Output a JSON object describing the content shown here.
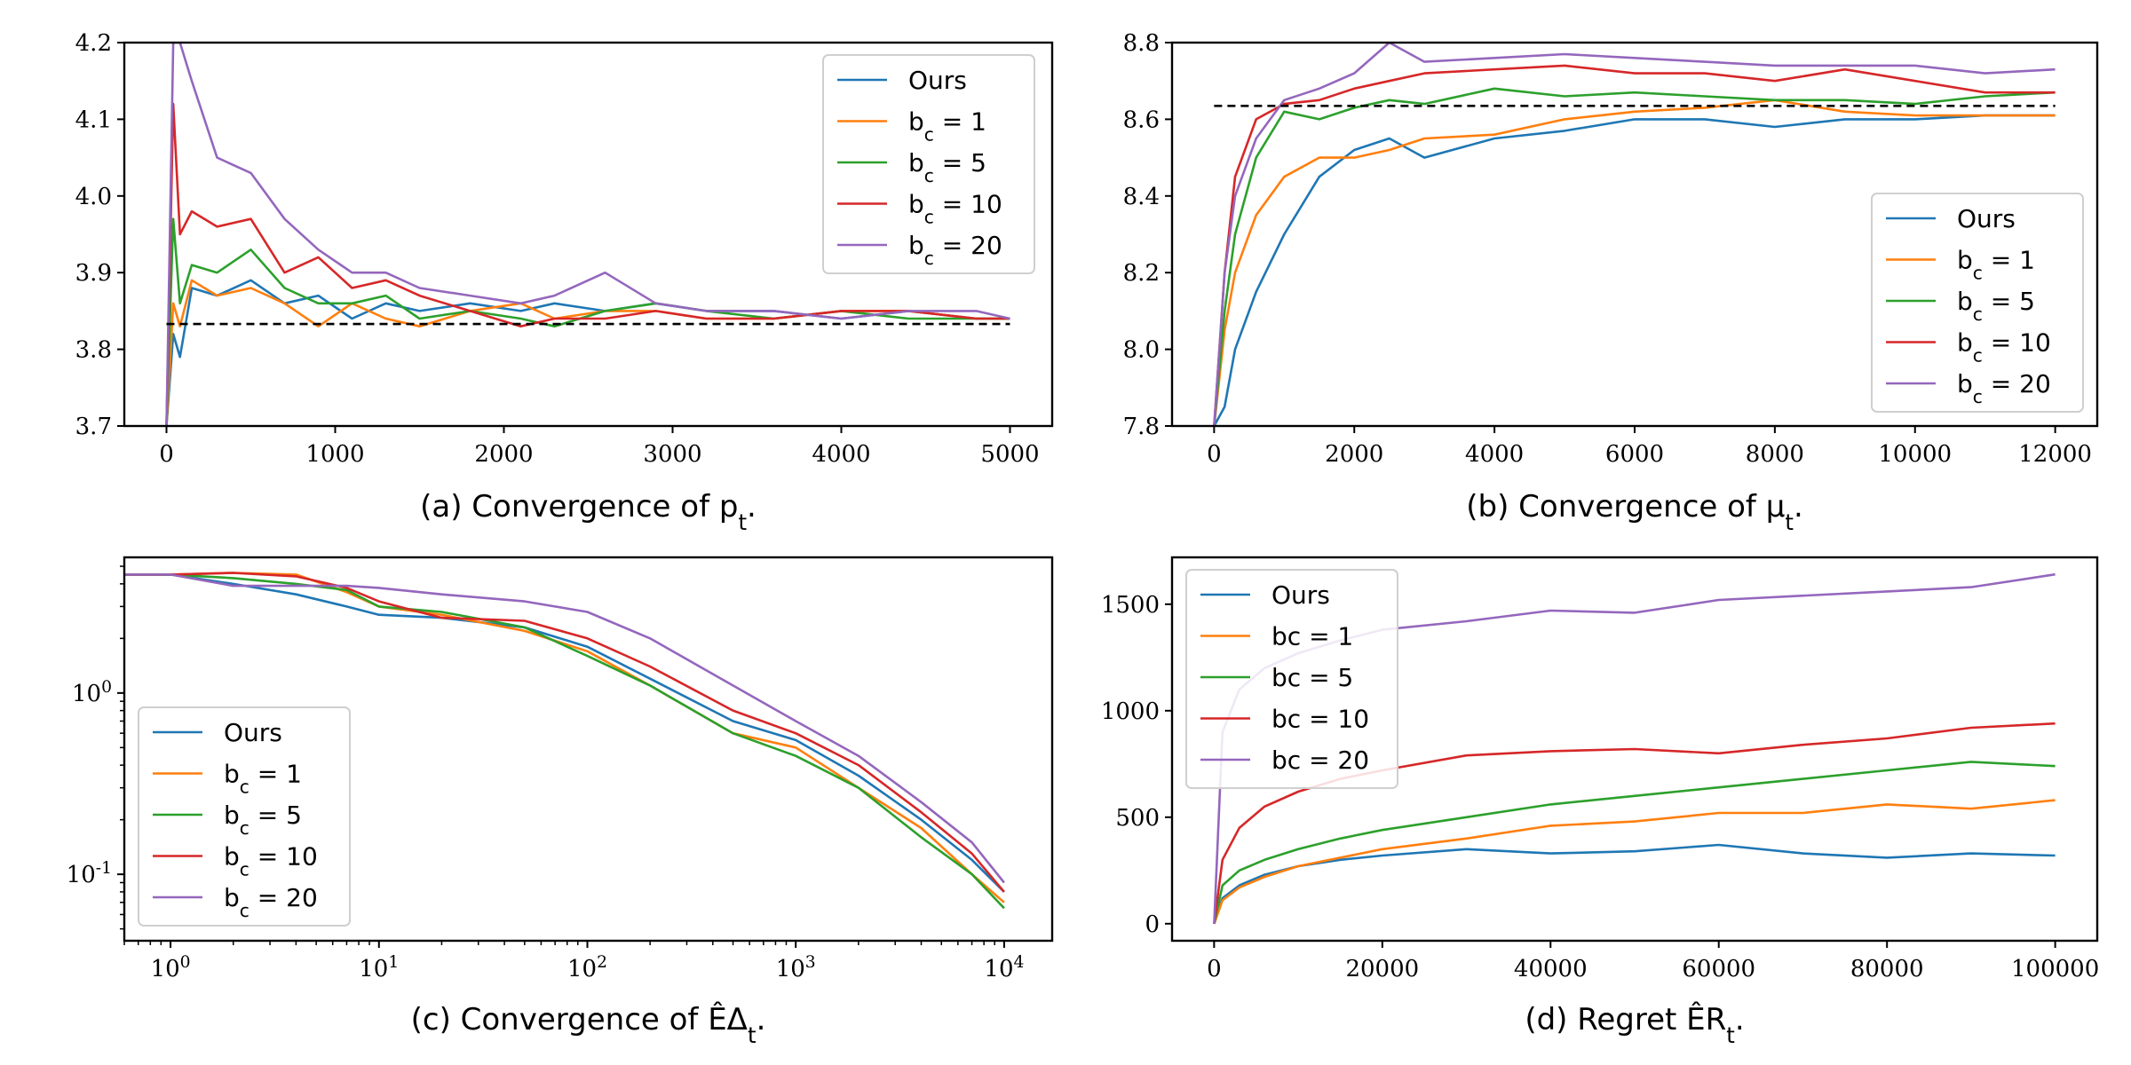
{
  "chart_data": [
    {
      "id": "a",
      "type": "line",
      "caption": "(a) Convergence of p_t.",
      "xscale": "linear",
      "yscale": "linear",
      "xlim": [
        -250,
        5250
      ],
      "ylim": [
        3.7,
        4.2
      ],
      "xticks": [
        0,
        1000,
        2000,
        3000,
        4000,
        5000
      ],
      "xtick_labels": [
        "0",
        "1000",
        "2000",
        "3000",
        "4000",
        "5000"
      ],
      "yticks": [
        3.7,
        3.8,
        3.9,
        4.0,
        4.1,
        4.2
      ],
      "ytick_labels": [
        "3.7",
        "3.8",
        "3.9",
        "4.0",
        "4.1",
        "4.2"
      ],
      "reference_line": 3.833,
      "legend": "top-right",
      "series": [
        {
          "name": "Ours",
          "color": "#1f77b4",
          "x": [
            0,
            40,
            80,
            150,
            300,
            500,
            700,
            900,
            1100,
            1300,
            1500,
            1800,
            2100,
            2300,
            2600,
            2900,
            3200,
            3600,
            4000,
            4400,
            4800,
            5000
          ],
          "y": [
            3.7,
            3.82,
            3.79,
            3.88,
            3.87,
            3.89,
            3.86,
            3.87,
            3.84,
            3.86,
            3.85,
            3.86,
            3.85,
            3.86,
            3.85,
            3.86,
            3.85,
            3.85,
            3.84,
            3.85,
            3.84,
            3.84
          ]
        },
        {
          "name": "b_c = 1",
          "color": "#ff7f0e",
          "x": [
            0,
            40,
            80,
            150,
            300,
            500,
            700,
            900,
            1100,
            1300,
            1500,
            1800,
            2100,
            2300,
            2600,
            2900,
            3200,
            3600,
            4000,
            4400,
            4800,
            5000
          ],
          "y": [
            3.7,
            3.86,
            3.83,
            3.89,
            3.87,
            3.88,
            3.86,
            3.83,
            3.86,
            3.84,
            3.83,
            3.85,
            3.86,
            3.84,
            3.85,
            3.85,
            3.84,
            3.84,
            3.85,
            3.85,
            3.84,
            3.84
          ]
        },
        {
          "name": "b_c = 5",
          "color": "#2ca02c",
          "x": [
            0,
            40,
            80,
            150,
            300,
            500,
            700,
            900,
            1100,
            1300,
            1500,
            1800,
            2100,
            2300,
            2600,
            2900,
            3200,
            3600,
            4000,
            4400,
            4800,
            5000
          ],
          "y": [
            3.7,
            3.97,
            3.86,
            3.91,
            3.9,
            3.93,
            3.88,
            3.86,
            3.86,
            3.87,
            3.84,
            3.85,
            3.84,
            3.83,
            3.85,
            3.86,
            3.85,
            3.84,
            3.85,
            3.84,
            3.84,
            3.84
          ]
        },
        {
          "name": "b_c = 10",
          "color": "#d62728",
          "x": [
            0,
            40,
            80,
            150,
            300,
            500,
            700,
            900,
            1100,
            1300,
            1500,
            1800,
            2100,
            2300,
            2600,
            2900,
            3200,
            3600,
            4000,
            4400,
            4800,
            5000
          ],
          "y": [
            3.7,
            4.12,
            3.95,
            3.98,
            3.96,
            3.97,
            3.9,
            3.92,
            3.88,
            3.89,
            3.87,
            3.85,
            3.83,
            3.84,
            3.84,
            3.85,
            3.84,
            3.84,
            3.85,
            3.85,
            3.84,
            3.84
          ]
        },
        {
          "name": "b_c = 20",
          "color": "#9467bd",
          "x": [
            0,
            40,
            80,
            150,
            300,
            500,
            700,
            900,
            1100,
            1300,
            1500,
            1800,
            2100,
            2300,
            2600,
            2900,
            3200,
            3600,
            4000,
            4400,
            4800,
            5000
          ],
          "y": [
            3.7,
            4.2,
            4.2,
            4.15,
            4.05,
            4.03,
            3.97,
            3.93,
            3.9,
            3.9,
            3.88,
            3.87,
            3.86,
            3.87,
            3.9,
            3.86,
            3.85,
            3.85,
            3.84,
            3.85,
            3.85,
            3.84
          ]
        }
      ]
    },
    {
      "id": "b",
      "type": "line",
      "caption": "(b) Convergence of μ_t.",
      "xscale": "linear",
      "yscale": "linear",
      "xlim": [
        -600,
        12600
      ],
      "ylim": [
        7.8,
        8.8
      ],
      "xticks": [
        0,
        2000,
        4000,
        6000,
        8000,
        10000,
        12000
      ],
      "xtick_labels": [
        "0",
        "2000",
        "4000",
        "6000",
        "8000",
        "10000",
        "12000"
      ],
      "yticks": [
        7.8,
        8.0,
        8.2,
        8.4,
        8.6,
        8.8
      ],
      "ytick_labels": [
        "7.8",
        "8.0",
        "8.2",
        "8.4",
        "8.6",
        "8.8"
      ],
      "reference_line": 8.635,
      "legend": "lower-right",
      "series": [
        {
          "name": "Ours",
          "color": "#1f77b4",
          "x": [
            0,
            150,
            300,
            600,
            1000,
            1500,
            2000,
            2500,
            3000,
            4000,
            5000,
            6000,
            7000,
            8000,
            9000,
            10000,
            11000,
            12000
          ],
          "y": [
            7.8,
            7.85,
            8.0,
            8.15,
            8.3,
            8.45,
            8.52,
            8.55,
            8.5,
            8.55,
            8.57,
            8.6,
            8.6,
            8.58,
            8.6,
            8.6,
            8.61,
            8.61
          ]
        },
        {
          "name": "b_c = 1",
          "color": "#ff7f0e",
          "x": [
            0,
            150,
            300,
            600,
            1000,
            1500,
            2000,
            2500,
            3000,
            4000,
            5000,
            6000,
            7000,
            8000,
            9000,
            10000,
            11000,
            12000
          ],
          "y": [
            7.8,
            8.05,
            8.2,
            8.35,
            8.45,
            8.5,
            8.5,
            8.52,
            8.55,
            8.56,
            8.6,
            8.62,
            8.63,
            8.65,
            8.62,
            8.61,
            8.61,
            8.61
          ]
        },
        {
          "name": "b_c = 5",
          "color": "#2ca02c",
          "x": [
            0,
            150,
            300,
            600,
            1000,
            1500,
            2000,
            2500,
            3000,
            4000,
            5000,
            6000,
            7000,
            8000,
            9000,
            10000,
            11000,
            12000
          ],
          "y": [
            7.8,
            8.1,
            8.3,
            8.5,
            8.62,
            8.6,
            8.63,
            8.65,
            8.64,
            8.68,
            8.66,
            8.67,
            8.66,
            8.65,
            8.65,
            8.64,
            8.66,
            8.67
          ]
        },
        {
          "name": "b_c = 10",
          "color": "#d62728",
          "x": [
            0,
            150,
            300,
            600,
            1000,
            1500,
            2000,
            2500,
            3000,
            4000,
            5000,
            6000,
            7000,
            8000,
            9000,
            10000,
            11000,
            12000
          ],
          "y": [
            7.8,
            8.2,
            8.45,
            8.6,
            8.64,
            8.65,
            8.68,
            8.7,
            8.72,
            8.73,
            8.74,
            8.72,
            8.72,
            8.7,
            8.73,
            8.7,
            8.67,
            8.67
          ]
        },
        {
          "name": "b_c = 20",
          "color": "#9467bd",
          "x": [
            0,
            150,
            300,
            600,
            1000,
            1500,
            2000,
            2500,
            3000,
            4000,
            5000,
            6000,
            7000,
            8000,
            9000,
            10000,
            11000,
            12000
          ],
          "y": [
            7.8,
            8.2,
            8.4,
            8.55,
            8.65,
            8.68,
            8.72,
            8.8,
            8.75,
            8.76,
            8.77,
            8.76,
            8.75,
            8.74,
            8.74,
            8.74,
            8.72,
            8.73
          ]
        }
      ]
    },
    {
      "id": "c",
      "type": "line",
      "caption": "(c) Convergence of ÊΔ_t.",
      "xscale": "log",
      "yscale": "log",
      "xlim": [
        0.6,
        17000
      ],
      "ylim": [
        0.043,
        5.6
      ],
      "xticks": [
        1,
        10,
        100,
        1000,
        10000
      ],
      "xtick_labels": [
        "10^0",
        "10^1",
        "10^2",
        "10^3",
        "10^4"
      ],
      "yticks": [
        0.1,
        1
      ],
      "ytick_labels": [
        "10^-1",
        "10^0"
      ],
      "legend": "lower-left",
      "series": [
        {
          "name": "Ours",
          "color": "#1f77b4",
          "x": [
            0.6,
            1,
            2,
            4,
            7,
            10,
            20,
            50,
            100,
            200,
            500,
            1000,
            2000,
            4000,
            7000,
            10000
          ],
          "y": [
            4.5,
            4.5,
            4.0,
            3.5,
            3.0,
            2.7,
            2.6,
            2.3,
            1.8,
            1.2,
            0.7,
            0.55,
            0.35,
            0.2,
            0.12,
            0.08
          ]
        },
        {
          "name": "b_c = 1",
          "color": "#ff7f0e",
          "x": [
            0.6,
            1,
            2,
            4,
            7,
            10,
            20,
            50,
            100,
            200,
            500,
            1000,
            2000,
            4000,
            7000,
            10000
          ],
          "y": [
            4.5,
            4.5,
            4.6,
            4.5,
            3.6,
            3.0,
            2.7,
            2.2,
            1.7,
            1.1,
            0.6,
            0.5,
            0.3,
            0.18,
            0.1,
            0.07
          ]
        },
        {
          "name": "b_c = 5",
          "color": "#2ca02c",
          "x": [
            0.6,
            1,
            2,
            4,
            7,
            10,
            20,
            50,
            100,
            200,
            500,
            1000,
            2000,
            4000,
            7000,
            10000
          ],
          "y": [
            4.5,
            4.5,
            4.3,
            4.0,
            3.7,
            3.0,
            2.8,
            2.3,
            1.6,
            1.1,
            0.6,
            0.45,
            0.3,
            0.16,
            0.1,
            0.065
          ]
        },
        {
          "name": "b_c = 10",
          "color": "#d62728",
          "x": [
            0.6,
            1,
            2,
            4,
            7,
            10,
            20,
            50,
            100,
            200,
            500,
            1000,
            2000,
            4000,
            7000,
            10000
          ],
          "y": [
            4.5,
            4.5,
            4.6,
            4.4,
            3.8,
            3.2,
            2.6,
            2.5,
            2.0,
            1.4,
            0.8,
            0.6,
            0.4,
            0.22,
            0.13,
            0.08
          ]
        },
        {
          "name": "b_c = 20",
          "color": "#9467bd",
          "x": [
            0.6,
            1,
            2,
            4,
            7,
            10,
            20,
            50,
            100,
            200,
            500,
            1000,
            2000,
            4000,
            7000,
            10000
          ],
          "y": [
            4.5,
            4.5,
            3.9,
            3.9,
            3.9,
            3.8,
            3.5,
            3.2,
            2.8,
            2.0,
            1.1,
            0.7,
            0.45,
            0.25,
            0.15,
            0.09
          ]
        }
      ]
    },
    {
      "id": "d",
      "type": "line",
      "caption": "(d) Regret ÊR_t.",
      "xscale": "linear",
      "yscale": "linear",
      "xlim": [
        -5000,
        105000
      ],
      "ylim": [
        -80,
        1720
      ],
      "xticks": [
        0,
        20000,
        40000,
        60000,
        80000,
        100000
      ],
      "xtick_labels": [
        "0",
        "20000",
        "40000",
        "60000",
        "80000",
        "100000"
      ],
      "yticks": [
        0,
        500,
        1000,
        1500
      ],
      "ytick_labels": [
        "0",
        "500",
        "1000",
        "1500"
      ],
      "legend": "top-left",
      "series": [
        {
          "name": "Ours",
          "color": "#1f77b4",
          "x": [
            0,
            1000,
            3000,
            6000,
            10000,
            15000,
            20000,
            30000,
            40000,
            50000,
            60000,
            70000,
            80000,
            90000,
            100000
          ],
          "y": [
            0,
            120,
            180,
            230,
            270,
            300,
            320,
            350,
            330,
            340,
            370,
            330,
            310,
            330,
            320
          ]
        },
        {
          "name": "bc = 1",
          "color": "#ff7f0e",
          "x": [
            0,
            1000,
            3000,
            6000,
            10000,
            15000,
            20000,
            30000,
            40000,
            50000,
            60000,
            70000,
            80000,
            90000,
            100000
          ],
          "y": [
            0,
            110,
            170,
            220,
            270,
            310,
            350,
            400,
            460,
            480,
            520,
            520,
            560,
            540,
            580
          ]
        },
        {
          "name": "bc = 5",
          "color": "#2ca02c",
          "x": [
            0,
            1000,
            3000,
            6000,
            10000,
            15000,
            20000,
            30000,
            40000,
            50000,
            60000,
            70000,
            80000,
            90000,
            100000
          ],
          "y": [
            0,
            180,
            250,
            300,
            350,
            400,
            440,
            500,
            560,
            600,
            640,
            680,
            720,
            760,
            740
          ]
        },
        {
          "name": "bc = 10",
          "color": "#d62728",
          "x": [
            0,
            1000,
            3000,
            6000,
            10000,
            15000,
            20000,
            30000,
            40000,
            50000,
            60000,
            70000,
            80000,
            90000,
            100000
          ],
          "y": [
            0,
            300,
            450,
            550,
            620,
            680,
            720,
            790,
            810,
            820,
            800,
            840,
            870,
            920,
            940
          ]
        },
        {
          "name": "bc = 20",
          "color": "#9467bd",
          "x": [
            0,
            1000,
            3000,
            6000,
            10000,
            15000,
            20000,
            30000,
            40000,
            50000,
            60000,
            70000,
            80000,
            90000,
            100000
          ],
          "y": [
            0,
            900,
            1100,
            1200,
            1270,
            1330,
            1380,
            1420,
            1470,
            1460,
            1520,
            1540,
            1560,
            1580,
            1640
          ]
        }
      ]
    }
  ]
}
